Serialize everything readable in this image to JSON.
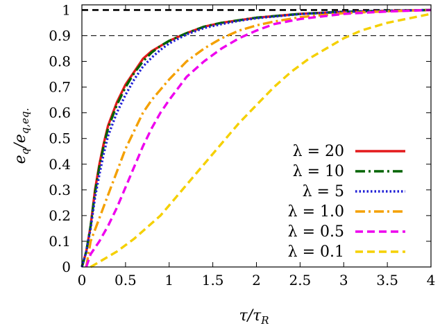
{
  "chart_data": {
    "type": "line",
    "title": "",
    "xlabel": "τ/τ_R",
    "ylabel": "e_q/e_q,eq.",
    "xlabel_parts": {
      "main": "τ/τ",
      "sub": "R"
    },
    "ylabel_parts": {
      "a": "e",
      "a_sub": "q",
      "slash": "/",
      "b": "e",
      "b_sub": "q,eq."
    },
    "xlim": [
      0,
      4
    ],
    "ylim": [
      0,
      1.02
    ],
    "xticks": [
      "0",
      "0.5",
      "1",
      "1.5",
      "2",
      "2.5",
      "3",
      "3.5",
      "4"
    ],
    "yticks": [
      "0",
      "0.1",
      "0.2",
      "0.3",
      "0.4",
      "0.5",
      "0.6",
      "0.7",
      "0.8",
      "0.9",
      "1"
    ],
    "reference_lines": [
      {
        "y": 1.0,
        "style": "thick-dashed",
        "color": "#000000"
      },
      {
        "y": 0.9,
        "style": "thin-dashed",
        "color": "#000000"
      }
    ],
    "legend_position": "bottom-right",
    "series": [
      {
        "name": "λ = 20",
        "color": "#e41a1c",
        "dash": "solid",
        "x": [
          0,
          0.05,
          0.1,
          0.15,
          0.2,
          0.25,
          0.3,
          0.4,
          0.5,
          0.6,
          0.7,
          0.8,
          0.9,
          1.0,
          1.2,
          1.4,
          1.6,
          1.8,
          2.0,
          2.5,
          3.0,
          3.5,
          4.0
        ],
        "y": [
          0.0,
          0.06,
          0.16,
          0.3,
          0.4,
          0.48,
          0.55,
          0.64,
          0.71,
          0.76,
          0.81,
          0.84,
          0.86,
          0.88,
          0.91,
          0.935,
          0.95,
          0.96,
          0.97,
          0.985,
          0.993,
          0.997,
          1.0
        ]
      },
      {
        "name": "λ = 10",
        "color": "#006400",
        "dash": "dashdot",
        "x": [
          0,
          0.05,
          0.1,
          0.15,
          0.2,
          0.25,
          0.3,
          0.4,
          0.5,
          0.6,
          0.7,
          0.8,
          0.9,
          1.0,
          1.2,
          1.4,
          1.6,
          1.8,
          2.0,
          2.5,
          3.0,
          3.5,
          4.0
        ],
        "y": [
          0.0,
          0.06,
          0.16,
          0.29,
          0.39,
          0.47,
          0.54,
          0.63,
          0.7,
          0.755,
          0.8,
          0.835,
          0.86,
          0.88,
          0.91,
          0.935,
          0.95,
          0.96,
          0.97,
          0.985,
          0.993,
          0.997,
          1.0
        ]
      },
      {
        "name": "λ = 5",
        "color": "#1f1fd6",
        "dash": "dotted",
        "x": [
          0,
          0.05,
          0.1,
          0.15,
          0.2,
          0.25,
          0.3,
          0.4,
          0.5,
          0.6,
          0.7,
          0.8,
          0.9,
          1.0,
          1.2,
          1.4,
          1.6,
          1.8,
          2.0,
          2.5,
          3.0,
          3.5,
          4.0
        ],
        "y": [
          0.0,
          0.06,
          0.15,
          0.27,
          0.36,
          0.44,
          0.51,
          0.6,
          0.67,
          0.73,
          0.78,
          0.815,
          0.845,
          0.87,
          0.905,
          0.93,
          0.945,
          0.958,
          0.968,
          0.984,
          0.993,
          0.997,
          1.0
        ]
      },
      {
        "name": "λ = 1.0",
        "color": "#f4a000",
        "dash": "dashdot",
        "x": [
          0.05,
          0.1,
          0.2,
          0.3,
          0.4,
          0.5,
          0.6,
          0.7,
          0.8,
          0.9,
          1.0,
          1.2,
          1.4,
          1.6,
          1.8,
          2.0,
          2.2,
          2.5,
          3.0,
          3.5,
          4.0
        ],
        "y": [
          0.0,
          0.1,
          0.19,
          0.28,
          0.37,
          0.46,
          0.53,
          0.6,
          0.65,
          0.69,
          0.73,
          0.8,
          0.85,
          0.89,
          0.92,
          0.94,
          0.955,
          0.972,
          0.988,
          0.995,
          1.0
        ]
      },
      {
        "name": "λ = 0.5",
        "color": "#ee00ee",
        "dash": "dashed",
        "x": [
          0.05,
          0.1,
          0.2,
          0.3,
          0.4,
          0.5,
          0.6,
          0.7,
          0.8,
          0.9,
          1.0,
          1.2,
          1.4,
          1.6,
          1.8,
          2.0,
          2.2,
          2.5,
          3.0,
          3.5,
          4.0
        ],
        "y": [
          0.0,
          0.05,
          0.1,
          0.16,
          0.23,
          0.31,
          0.39,
          0.47,
          0.54,
          0.6,
          0.65,
          0.74,
          0.8,
          0.85,
          0.89,
          0.92,
          0.945,
          0.965,
          0.985,
          0.994,
          1.0
        ]
      },
      {
        "name": "λ = 0.1",
        "color": "#f5d000",
        "dash": "dashed",
        "x": [
          0.1,
          0.2,
          0.3,
          0.4,
          0.5,
          0.6,
          0.7,
          0.8,
          0.9,
          1.0,
          1.2,
          1.4,
          1.6,
          1.8,
          2.0,
          2.2,
          2.4,
          2.6,
          2.8,
          3.0,
          3.2,
          3.5,
          4.0
        ],
        "y": [
          0.0,
          0.02,
          0.04,
          0.06,
          0.085,
          0.11,
          0.14,
          0.17,
          0.2,
          0.24,
          0.32,
          0.4,
          0.48,
          0.56,
          0.63,
          0.7,
          0.76,
          0.81,
          0.85,
          0.89,
          0.92,
          0.95,
          0.985
        ]
      }
    ]
  }
}
